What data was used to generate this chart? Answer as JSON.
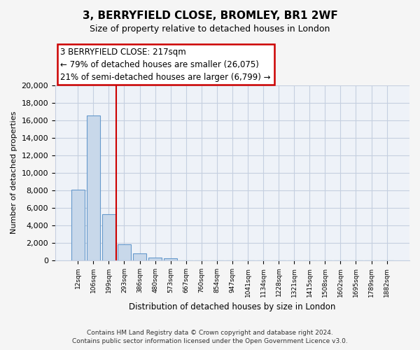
{
  "title": "3, BERRYFIELD CLOSE, BROMLEY, BR1 2WF",
  "subtitle": "Size of property relative to detached houses in London",
  "xlabel": "Distribution of detached houses by size in London",
  "ylabel": "Number of detached properties",
  "bar_labels": [
    "12sqm",
    "106sqm",
    "199sqm",
    "293sqm",
    "386sqm",
    "480sqm",
    "573sqm",
    "667sqm",
    "760sqm",
    "854sqm",
    "947sqm",
    "1041sqm",
    "1134sqm",
    "1228sqm",
    "1321sqm",
    "1415sqm",
    "1508sqm",
    "1602sqm",
    "1695sqm",
    "1789sqm",
    "1882sqm"
  ],
  "bar_heights": [
    8100,
    16500,
    5300,
    1800,
    800,
    300,
    250,
    0,
    0,
    0,
    0,
    0,
    0,
    0,
    0,
    0,
    0,
    0,
    0,
    0,
    0
  ],
  "bar_color": "#c8d8ea",
  "bar_edge_color": "#6699cc",
  "vline_x": 2.5,
  "vline_color": "#cc0000",
  "annotation_box_text": "3 BERRYFIELD CLOSE: 217sqm\n← 79% of detached houses are smaller (26,075)\n21% of semi-detached houses are larger (6,799) →",
  "box_edge_color": "#cc0000",
  "ylim": [
    0,
    20000
  ],
  "yticks": [
    0,
    2000,
    4000,
    6000,
    8000,
    10000,
    12000,
    14000,
    16000,
    18000,
    20000
  ],
  "footer_line1": "Contains HM Land Registry data © Crown copyright and database right 2024.",
  "footer_line2": "Contains public sector information licensed under the Open Government Licence v3.0.",
  "bg_color": "#f5f5f5",
  "plot_bg_color": "#eef2f8",
  "grid_color": "#c5cfe0"
}
